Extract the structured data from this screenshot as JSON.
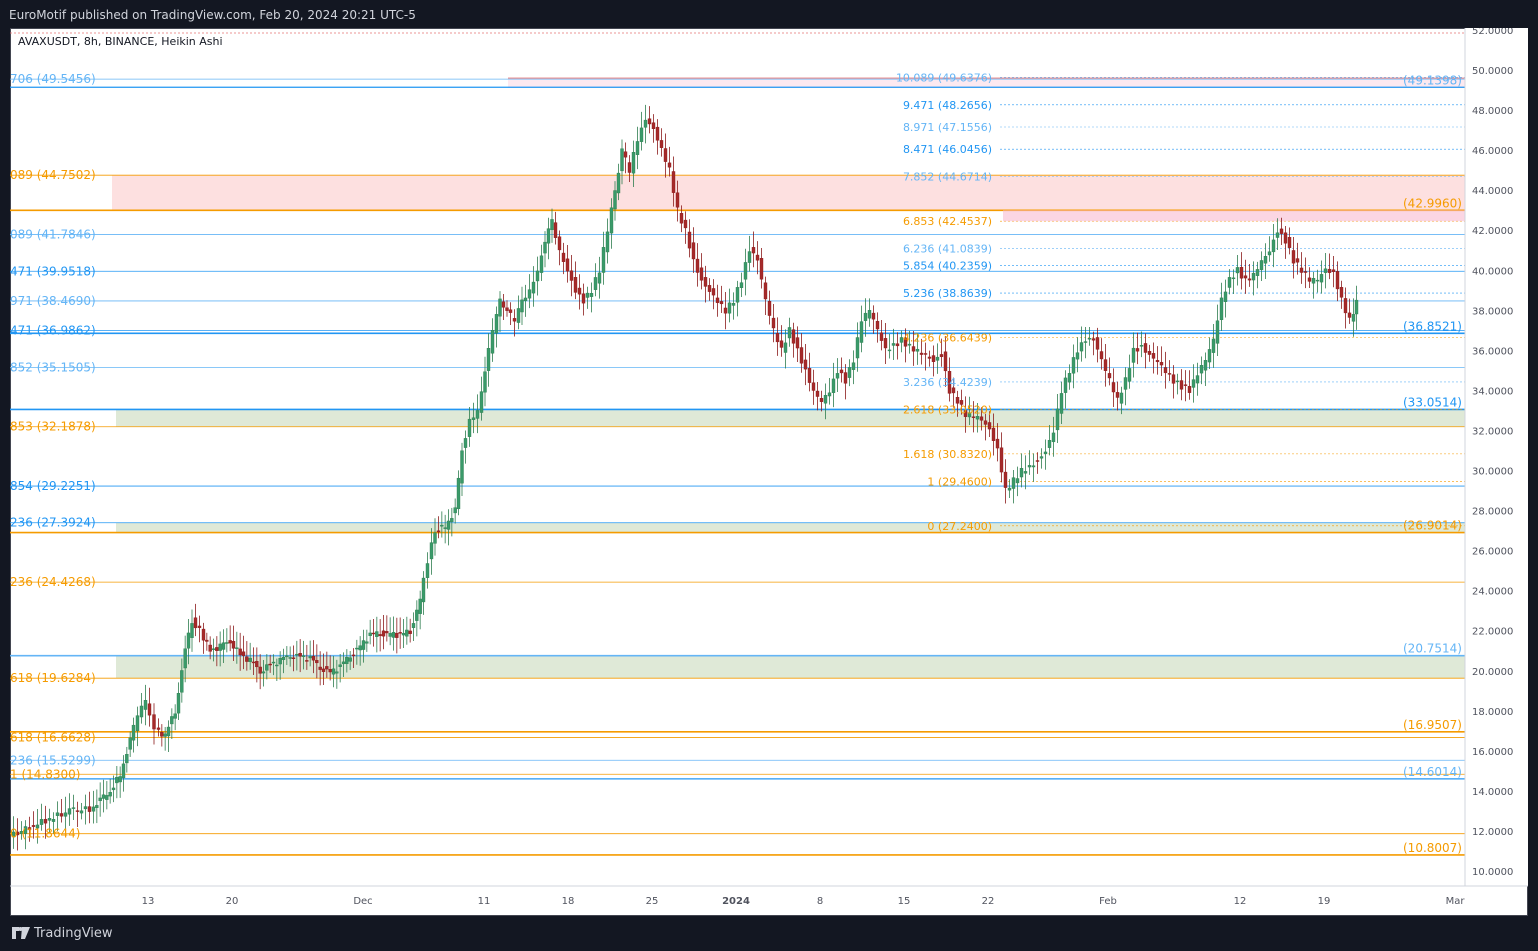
{
  "header": {
    "published": "EuroMotif published on TradingView.com, Feb 20, 2024 20:21 UTC-5"
  },
  "symbol": {
    "label": "AVAXUSDT, 8h, BINANCE, Heikin Ashi"
  },
  "footer": {
    "brand": "TradingView"
  },
  "colors": {
    "up": "#26a69a",
    "upDark": "#1e5a3a",
    "down": "#8b1a1a",
    "blue": "#2196f3",
    "orange": "#f59b00",
    "lightBlue": "#64b5f6"
  },
  "chart_data": {
    "type": "candlestick",
    "ylim": [
      9.0,
      52.5
    ],
    "y_ticks": [
      "52.0000",
      "50.0000",
      "48.0000",
      "46.0000",
      "44.0000",
      "42.0000",
      "40.0000",
      "38.0000",
      "36.0000",
      "34.0000",
      "32.0000",
      "30.0000",
      "28.0000",
      "26.0000",
      "24.0000",
      "22.0000",
      "20.0000",
      "18.0000",
      "16.0000",
      "14.0000",
      "12.0000",
      "10.0000"
    ],
    "x_ticks": [
      "13",
      "20",
      "Dec",
      "11",
      "18",
      "25",
      "2024",
      "8",
      "15",
      "22",
      "Feb",
      "12",
      "19",
      "Mar"
    ],
    "left_fib_labels": [
      {
        "text": "706 (49.5456)",
        "y": 49.5456,
        "color": "#64b5f6"
      },
      {
        "text": "089 (44.7502)",
        "y": 44.7502,
        "color": "#f59b00"
      },
      {
        "text": "089 (41.7846)",
        "y": 41.7846,
        "color": "#64b5f6"
      },
      {
        "text": "471 (39.9518)",
        "y": 39.9518,
        "color": "#2196f3"
      },
      {
        "text": "971 (38.4690)",
        "y": 38.469,
        "color": "#64b5f6"
      },
      {
        "text": "471 (36.9862)",
        "y": 36.9862,
        "color": "#2196f3"
      },
      {
        "text": "852 (35.1505)",
        "y": 35.1505,
        "color": "#64b5f6"
      },
      {
        "text": "853 (32.1878)",
        "y": 32.1878,
        "color": "#f59b00"
      },
      {
        "text": "854 (29.2251)",
        "y": 29.2251,
        "color": "#2196f3"
      },
      {
        "text": "236 (27.3924)",
        "y": 27.3924,
        "color": "#2196f3"
      },
      {
        "text": "236 (24.4268)",
        "y": 24.4268,
        "color": "#f59b00"
      },
      {
        "text": "618 (19.6284)",
        "y": 19.6284,
        "color": "#f59b00"
      },
      {
        "text": "618 (16.6628)",
        "y": 16.6628,
        "color": "#f59b00"
      },
      {
        "text": "236 (15.5299)",
        "y": 15.5299,
        "color": "#64b5f6"
      },
      {
        "text": "1 (14.8300)",
        "y": 14.83,
        "color": "#f59b00"
      },
      {
        "text": "0 (11.8644)",
        "y": 11.8644,
        "color": "#f59b00"
      }
    ],
    "mid_fib_labels": [
      {
        "text": "10.089 (49.6376)",
        "y": 49.6376,
        "color": "#64b5f6"
      },
      {
        "text": "9.471 (48.2656)",
        "y": 48.2656,
        "color": "#2196f3"
      },
      {
        "text": "8.971 (47.1556)",
        "y": 47.1556,
        "color": "#64b5f6"
      },
      {
        "text": "8.471 (46.0456)",
        "y": 46.0456,
        "color": "#2196f3"
      },
      {
        "text": "7.852 (44.6714)",
        "y": 44.6714,
        "color": "#64b5f6"
      },
      {
        "text": "6.853 (42.4537)",
        "y": 42.4537,
        "color": "#f59b00"
      },
      {
        "text": "6.236 (41.0839)",
        "y": 41.0839,
        "color": "#64b5f6"
      },
      {
        "text": "5.854 (40.2359)",
        "y": 40.2359,
        "color": "#2196f3"
      },
      {
        "text": "5.236 (38.8639)",
        "y": 38.8639,
        "color": "#2196f3"
      },
      {
        "text": "4.236 (36.6439)",
        "y": 36.6439,
        "color": "#f59b00"
      },
      {
        "text": "3.236 (34.4239)",
        "y": 34.4239,
        "color": "#64b5f6"
      },
      {
        "text": "2.618 (33.0520)",
        "y": 33.052,
        "color": "#f59b00"
      },
      {
        "text": "1.618 (30.8320)",
        "y": 30.832,
        "color": "#f59b00"
      },
      {
        "text": "1 (29.4600)",
        "y": 29.46,
        "color": "#f59b00"
      },
      {
        "text": "0 (27.2400)",
        "y": 27.24,
        "color": "#f59b00"
      }
    ],
    "right_levels": [
      {
        "text": "(49.1398)",
        "y": 49.1398,
        "color": "#64b5f6"
      },
      {
        "text": "(42.9960)",
        "y": 42.996,
        "color": "#f59b00"
      },
      {
        "text": "(36.8521)",
        "y": 36.8521,
        "color": "#2196f3"
      },
      {
        "text": "(33.0514)",
        "y": 33.0514,
        "color": "#2196f3"
      },
      {
        "text": "(26.9014)",
        "y": 26.9014,
        "color": "#f59b00"
      },
      {
        "text": "(20.7514)",
        "y": 20.7514,
        "color": "#64b5f6"
      },
      {
        "text": "(16.9507)",
        "y": 16.9507,
        "color": "#f59b00"
      },
      {
        "text": "(14.6014)",
        "y": 14.6014,
        "color": "#64b5f6"
      },
      {
        "text": "(10.8007)",
        "y": 10.8007,
        "color": "#f59b00"
      }
    ],
    "horizontal_lines": [
      {
        "y": 49.1398,
        "color": "#2196f3",
        "width": 1.2
      },
      {
        "y": 49.5456,
        "color": "#64b5f6",
        "width": 0.8
      },
      {
        "y": 44.7502,
        "color": "#f59b00",
        "width": 0.8
      },
      {
        "y": 42.996,
        "color": "#f59b00",
        "width": 1.6
      },
      {
        "y": 41.7846,
        "color": "#64b5f6",
        "width": 0.8
      },
      {
        "y": 39.9518,
        "color": "#2196f3",
        "width": 0.8
      },
      {
        "y": 38.469,
        "color": "#64b5f6",
        "width": 0.8
      },
      {
        "y": 36.9862,
        "color": "#2196f3",
        "width": 0.8
      },
      {
        "y": 36.8521,
        "color": "#2196f3",
        "width": 1.6
      },
      {
        "y": 35.1505,
        "color": "#64b5f6",
        "width": 0.8
      },
      {
        "y": 33.0514,
        "color": "#2196f3",
        "width": 1.6
      },
      {
        "y": 32.1878,
        "color": "#f59b00",
        "width": 0.8
      },
      {
        "y": 29.2251,
        "color": "#2196f3",
        "width": 0.8
      },
      {
        "y": 27.3924,
        "color": "#2196f3",
        "width": 0.8
      },
      {
        "y": 26.9014,
        "color": "#f59b00",
        "width": 1.6
      },
      {
        "y": 24.4268,
        "color": "#f59b00",
        "width": 0.8
      },
      {
        "y": 20.7514,
        "color": "#64b5f6",
        "width": 1.6
      },
      {
        "y": 19.6284,
        "color": "#f59b00",
        "width": 0.8
      },
      {
        "y": 16.9507,
        "color": "#f59b00",
        "width": 1.6
      },
      {
        "y": 16.6628,
        "color": "#f59b00",
        "width": 0.8
      },
      {
        "y": 15.5299,
        "color": "#64b5f6",
        "width": 0.8
      },
      {
        "y": 14.83,
        "color": "#f59b00",
        "width": 0.8
      },
      {
        "y": 14.6014,
        "color": "#2196f3",
        "width": 1.2
      },
      {
        "y": 11.8644,
        "color": "#f59b00",
        "width": 0.8
      },
      {
        "y": 10.8007,
        "color": "#f59b00",
        "width": 1.6
      }
    ],
    "zones": [
      {
        "y1": 44.7502,
        "y2": 42.996,
        "color": "#fde0e0"
      },
      {
        "y1": 33.0514,
        "y2": 32.1878,
        "color": "#dfe9d7"
      },
      {
        "y1": 27.3924,
        "y2": 26.9014,
        "color": "#dfe9d7"
      },
      {
        "y1": 20.7514,
        "y2": 19.6284,
        "color": "#dfe9d7"
      }
    ],
    "price_path": [
      [
        0,
        11.7
      ],
      [
        20,
        12.2
      ],
      [
        40,
        12.6
      ],
      [
        60,
        13.0
      ],
      [
        80,
        13.1
      ],
      [
        90,
        13.5
      ],
      [
        100,
        14.0
      ],
      [
        110,
        14.8
      ],
      [
        120,
        16.5
      ],
      [
        128,
        17.8
      ],
      [
        136,
        18.5
      ],
      [
        145,
        17.0
      ],
      [
        155,
        16.8
      ],
      [
        165,
        18.0
      ],
      [
        175,
        21.0
      ],
      [
        182,
        22.5
      ],
      [
        190,
        22.0
      ],
      [
        200,
        21.0
      ],
      [
        210,
        21.2
      ],
      [
        220,
        21.5
      ],
      [
        230,
        20.8
      ],
      [
        240,
        20.5
      ],
      [
        250,
        20.0
      ],
      [
        260,
        20.3
      ],
      [
        270,
        20.5
      ],
      [
        280,
        20.8
      ],
      [
        290,
        20.7
      ],
      [
        300,
        20.6
      ],
      [
        310,
        20.2
      ],
      [
        320,
        19.9
      ],
      [
        330,
        20.2
      ],
      [
        340,
        20.8
      ],
      [
        350,
        21.2
      ],
      [
        360,
        21.8
      ],
      [
        370,
        21.9
      ],
      [
        380,
        21.8
      ],
      [
        390,
        21.8
      ],
      [
        400,
        22.0
      ],
      [
        410,
        23.5
      ],
      [
        418,
        25.5
      ],
      [
        425,
        27.0
      ],
      [
        435,
        27.2
      ],
      [
        445,
        28.0
      ],
      [
        452,
        31.0
      ],
      [
        460,
        32.5
      ],
      [
        468,
        33.0
      ],
      [
        475,
        35.0
      ],
      [
        483,
        37.0
      ],
      [
        490,
        38.5
      ],
      [
        497,
        38.0
      ],
      [
        505,
        37.5
      ],
      [
        512,
        38.5
      ],
      [
        520,
        39.0
      ],
      [
        528,
        40.0
      ],
      [
        535,
        41.5
      ],
      [
        542,
        42.5
      ],
      [
        550,
        41.0
      ],
      [
        558,
        40.0
      ],
      [
        566,
        39.0
      ],
      [
        574,
        38.5
      ],
      [
        582,
        39.0
      ],
      [
        590,
        40.0
      ],
      [
        598,
        42.0
      ],
      [
        605,
        44.0
      ],
      [
        612,
        46.0
      ],
      [
        620,
        45.0
      ],
      [
        628,
        46.5
      ],
      [
        636,
        47.5
      ],
      [
        644,
        47.0
      ],
      [
        652,
        46.0
      ],
      [
        660,
        45.0
      ],
      [
        668,
        43.0
      ],
      [
        676,
        42.0
      ],
      [
        684,
        40.5
      ],
      [
        692,
        39.5
      ],
      [
        700,
        39.0
      ],
      [
        708,
        38.5
      ],
      [
        716,
        38.0
      ],
      [
        724,
        38.5
      ],
      [
        732,
        39.5
      ],
      [
        740,
        41.0
      ],
      [
        748,
        40.5
      ],
      [
        756,
        38.5
      ],
      [
        764,
        37.0
      ],
      [
        772,
        36.0
      ],
      [
        780,
        37.0
      ],
      [
        788,
        36.0
      ],
      [
        796,
        35.0
      ],
      [
        804,
        34.0
      ],
      [
        812,
        33.5
      ],
      [
        820,
        34.0
      ],
      [
        828,
        35.0
      ],
      [
        836,
        34.5
      ],
      [
        844,
        35.5
      ],
      [
        852,
        37.5
      ],
      [
        860,
        38.0
      ],
      [
        868,
        37.0
      ],
      [
        876,
        36.0
      ],
      [
        884,
        36.2
      ],
      [
        892,
        36.5
      ],
      [
        900,
        36.2
      ],
      [
        908,
        36.0
      ],
      [
        916,
        35.8
      ],
      [
        924,
        35.5
      ],
      [
        932,
        35.8
      ],
      [
        940,
        34.0
      ],
      [
        948,
        33.5
      ],
      [
        956,
        32.8
      ],
      [
        964,
        32.7
      ],
      [
        972,
        32.5
      ],
      [
        980,
        32.0
      ],
      [
        988,
        31.0
      ],
      [
        996,
        29.0
      ],
      [
        1004,
        29.5
      ],
      [
        1012,
        30.0
      ],
      [
        1020,
        30.2
      ],
      [
        1028,
        30.5
      ],
      [
        1036,
        31.0
      ],
      [
        1044,
        32.0
      ],
      [
        1052,
        34.0
      ],
      [
        1060,
        35.0
      ],
      [
        1068,
        36.0
      ],
      [
        1076,
        36.5
      ],
      [
        1084,
        36.5
      ],
      [
        1092,
        35.5
      ],
      [
        1100,
        34.5
      ],
      [
        1108,
        33.5
      ],
      [
        1116,
        34.5
      ],
      [
        1124,
        36.0
      ],
      [
        1132,
        36.2
      ],
      [
        1140,
        35.8
      ],
      [
        1148,
        35.5
      ],
      [
        1156,
        35.0
      ],
      [
        1164,
        34.5
      ],
      [
        1172,
        34.2
      ],
      [
        1180,
        34.0
      ],
      [
        1188,
        34.8
      ],
      [
        1196,
        35.5
      ],
      [
        1204,
        36.5
      ],
      [
        1212,
        38.5
      ],
      [
        1220,
        39.5
      ],
      [
        1228,
        40.0
      ],
      [
        1236,
        39.5
      ],
      [
        1244,
        39.8
      ],
      [
        1252,
        40.5
      ],
      [
        1260,
        41.0
      ],
      [
        1268,
        42.0
      ],
      [
        1276,
        41.5
      ],
      [
        1284,
        40.5
      ],
      [
        1292,
        40.0
      ],
      [
        1300,
        39.5
      ],
      [
        1308,
        39.5
      ],
      [
        1316,
        40.0
      ],
      [
        1324,
        39.8
      ],
      [
        1332,
        38.5
      ],
      [
        1340,
        37.5
      ],
      [
        1346,
        38.4
      ]
    ]
  }
}
